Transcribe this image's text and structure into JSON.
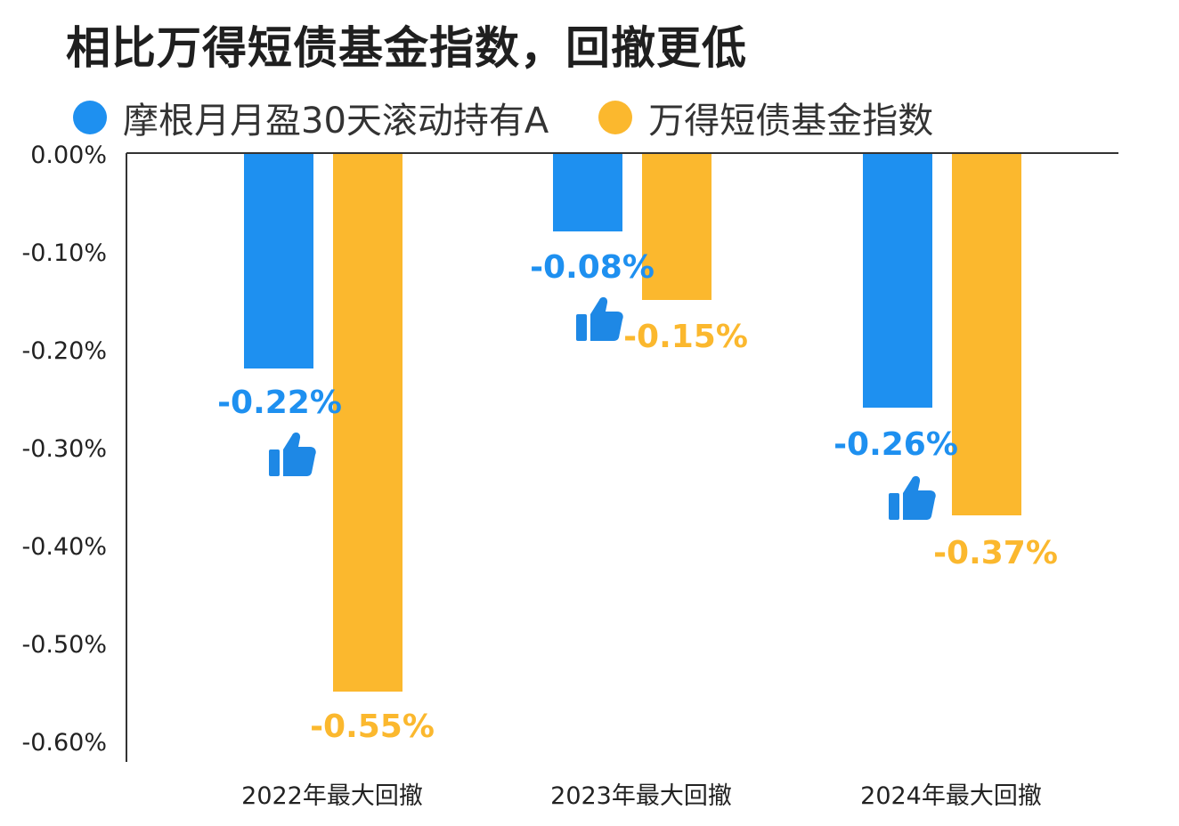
{
  "title": "相比万得短债基金指数，回撤更低",
  "colors": {
    "series_a": "#1E90F0",
    "series_b": "#FBB82E",
    "axis": "#333333",
    "text": "#333333",
    "thumb": "#1E88E5"
  },
  "chart_data": {
    "type": "bar",
    "title": "相比万得短债基金指数，回撤更低",
    "categories": [
      "2022年最大回撤",
      "2023年最大回撤",
      "2024年最大回撤"
    ],
    "series": [
      {
        "name": "摩根月月盈30天滚动持有A",
        "values": [
          -0.22,
          -0.08,
          -0.26
        ],
        "labels": [
          "-0.22%",
          "-0.08%",
          "-0.26%"
        ],
        "color": "#1E90F0"
      },
      {
        "name": "万得短债基金指数",
        "values": [
          -0.55,
          -0.15,
          -0.37
        ],
        "labels": [
          "-0.55%",
          "-0.15%",
          "-0.37%"
        ],
        "color": "#FBB82E"
      }
    ],
    "yticks": [
      0,
      -0.1,
      -0.2,
      -0.3,
      -0.4,
      -0.5,
      -0.6
    ],
    "ytick_labels": [
      "0.00%",
      "-0.10%",
      "-0.20%",
      "-0.30%",
      "-0.40%",
      "-0.50%",
      "-0.60%"
    ],
    "ylim": [
      -0.62,
      0
    ],
    "legend_position": "top-left",
    "grid": false,
    "annotation_icon": "thumbs-up-icon"
  }
}
